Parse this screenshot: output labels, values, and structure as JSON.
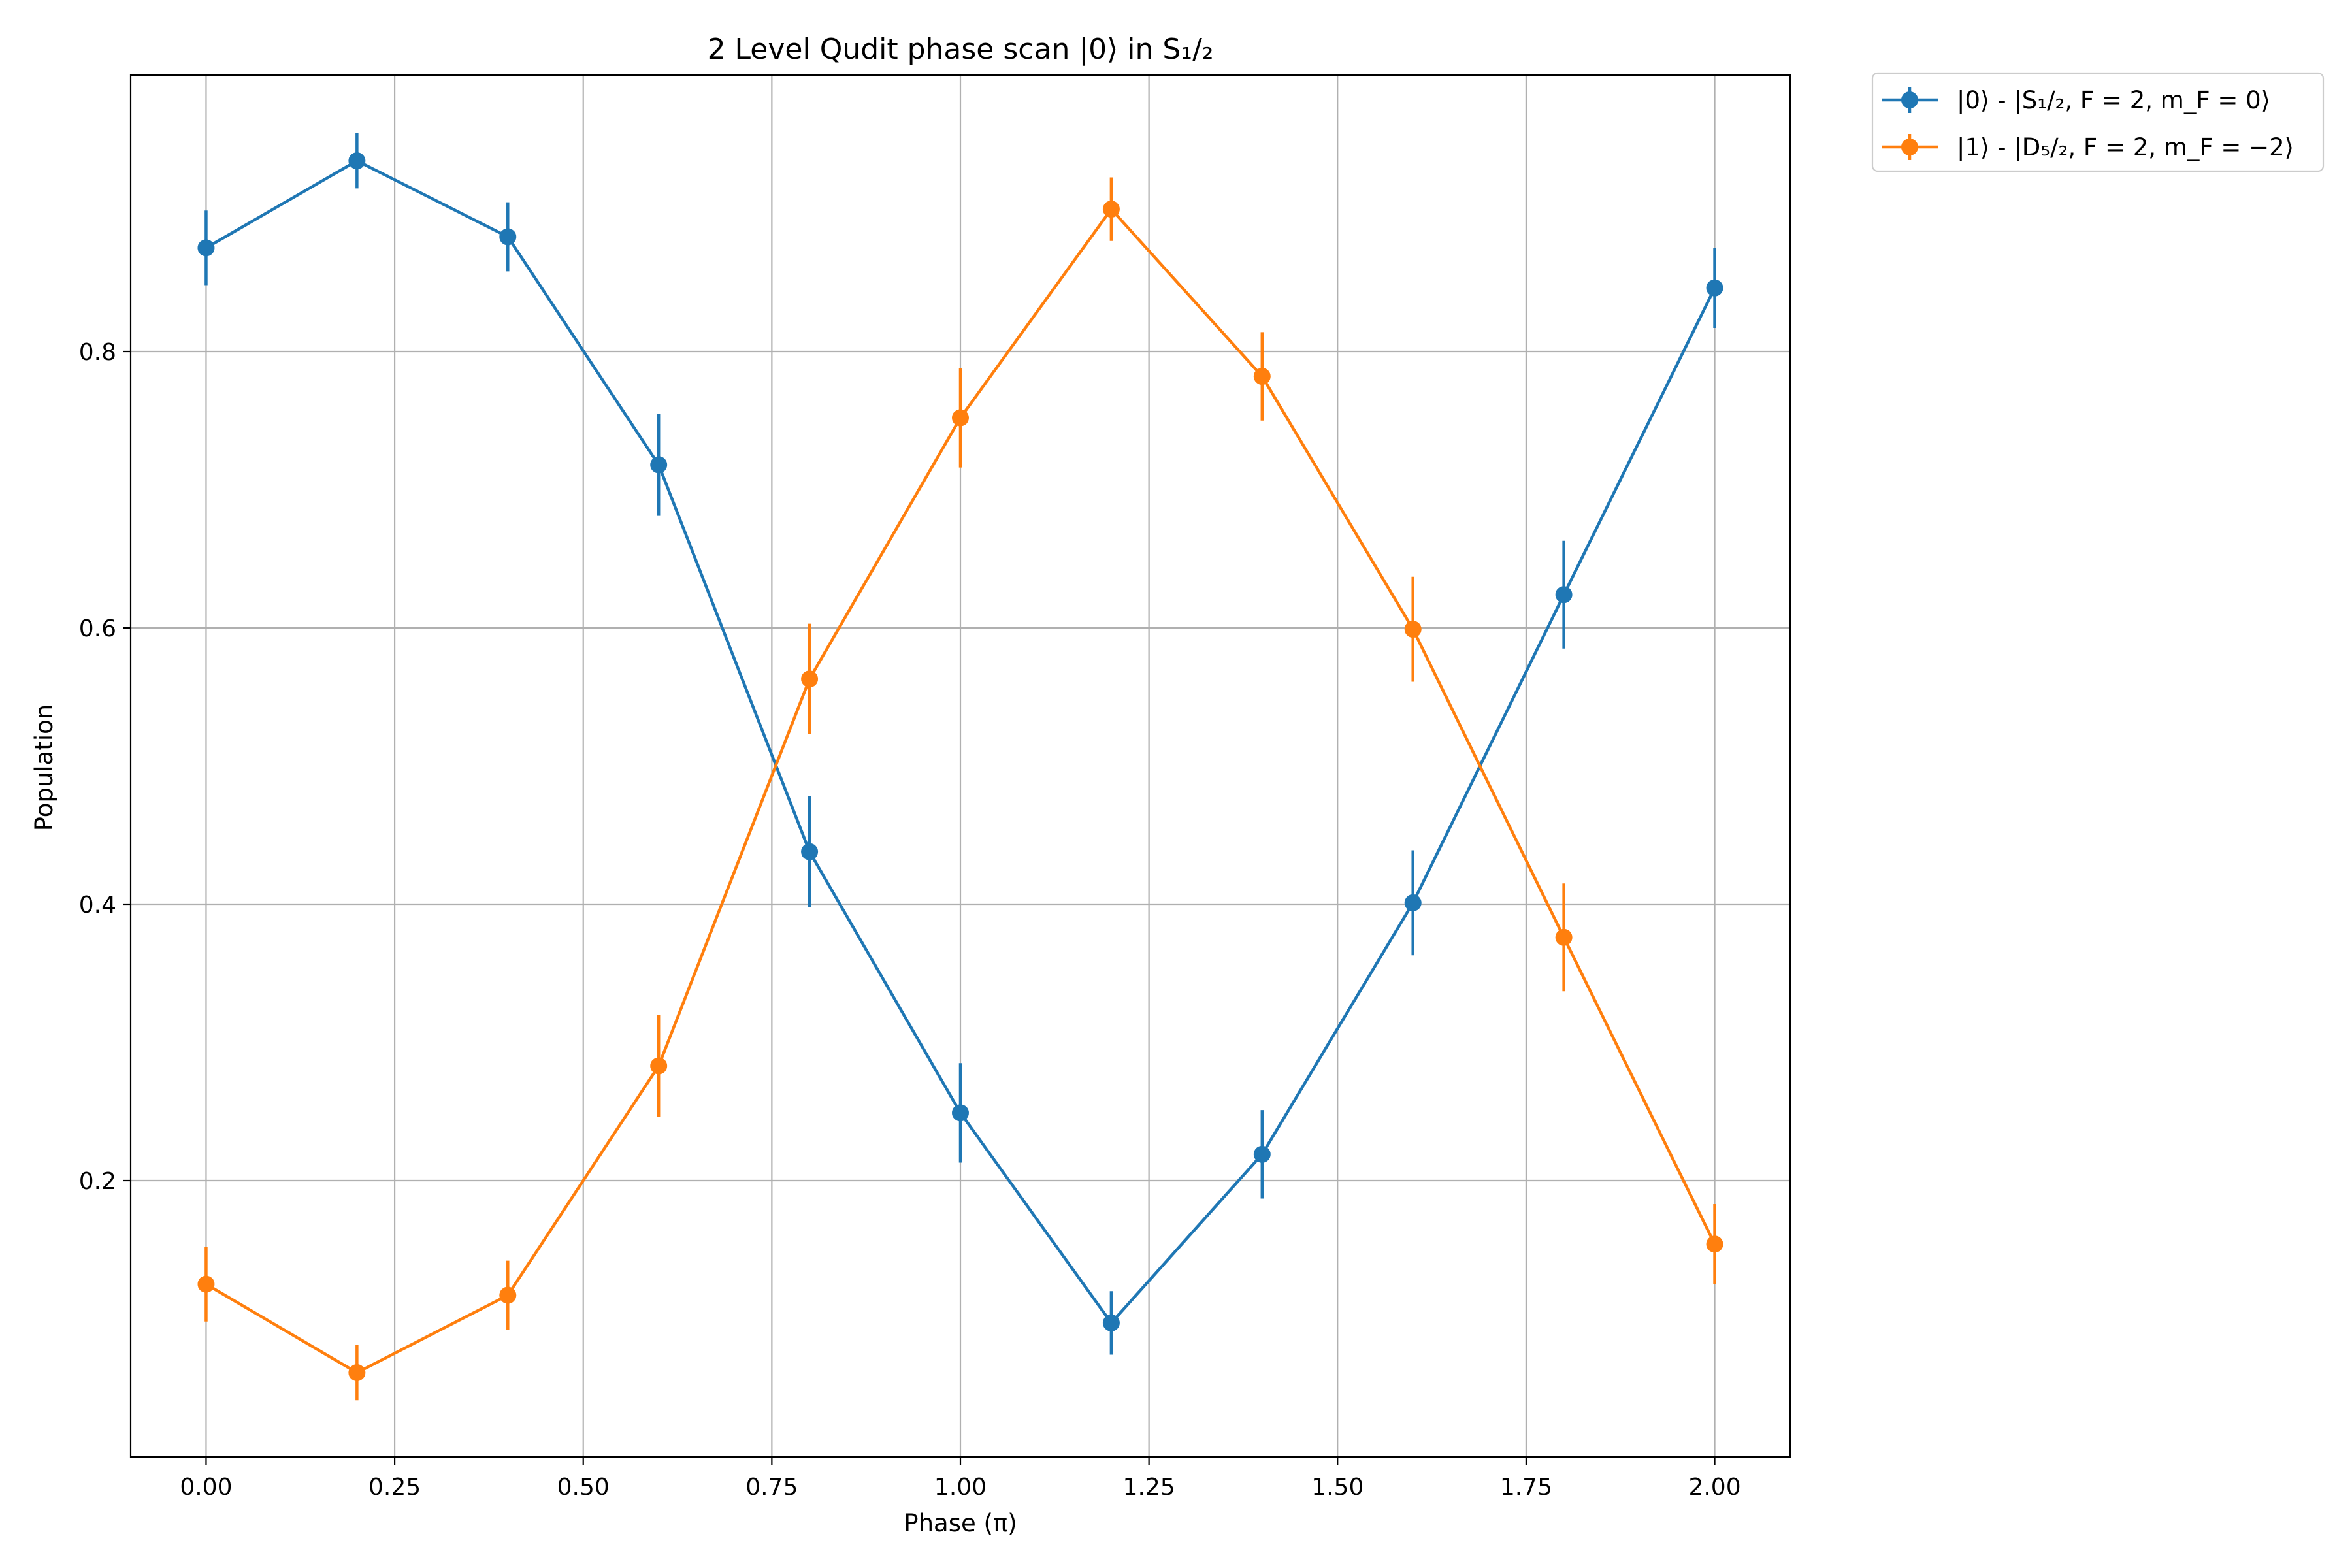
{
  "chart_data": {
    "type": "line",
    "title": "2 Level Qudit phase scan |0⟩ in S₁/₂",
    "xlabel": "Phase (π)",
    "ylabel": "Population",
    "xlim": [
      -0.1,
      2.1
    ],
    "ylim": [
      0.0,
      1.0
    ],
    "xticks": [
      "0.00",
      "0.25",
      "0.50",
      "0.75",
      "1.00",
      "1.25",
      "1.50",
      "1.75",
      "2.00"
    ],
    "yticks": [
      "0.2",
      "0.4",
      "0.6",
      "0.8"
    ],
    "grid": true,
    "legend_position": "outside-top-right",
    "x": [
      0.0,
      0.2,
      0.4,
      0.6,
      0.8,
      1.0,
      1.2,
      1.4,
      1.6,
      1.8,
      2.0
    ],
    "series": [
      {
        "name": "|0⟩ - |S₁/₂, F = 2, m_F = 0⟩",
        "color": "#1f77b4",
        "values": [
          0.875,
          0.938,
          0.883,
          0.718,
          0.438,
          0.249,
          0.097,
          0.219,
          0.401,
          0.624,
          0.846
        ],
        "errors": [
          0.027,
          0.02,
          0.025,
          0.037,
          0.04,
          0.036,
          0.023,
          0.032,
          0.038,
          0.039,
          0.029
        ]
      },
      {
        "name": "|1⟩ - |D₅/₂, F = 2, m_F = −2⟩",
        "color": "#ff7f0e",
        "values": [
          0.125,
          0.061,
          0.117,
          0.283,
          0.563,
          0.752,
          0.903,
          0.782,
          0.599,
          0.376,
          0.154
        ],
        "errors": [
          0.027,
          0.02,
          0.025,
          0.037,
          0.04,
          0.036,
          0.023,
          0.032,
          0.038,
          0.039,
          0.029
        ]
      }
    ]
  }
}
